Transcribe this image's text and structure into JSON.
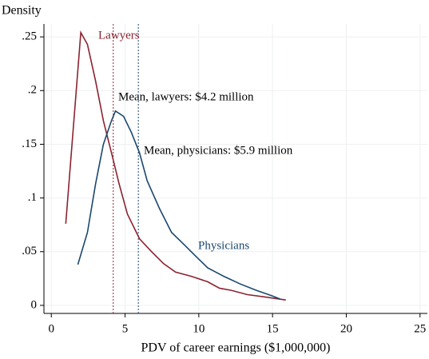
{
  "chart_data": {
    "type": "line",
    "y_label": "Density",
    "x_label": "PDV of career earnings ($1,000,000)",
    "xlim": [
      -0.5,
      25.5
    ],
    "ylim": [
      -0.0075,
      0.262
    ],
    "xticks": [
      0,
      5,
      10,
      15,
      20,
      25
    ],
    "yticks": [
      0,
      {
        "value": 0.05,
        "label": ".05"
      },
      {
        "value": 0.1,
        "label": ".1"
      },
      {
        "value": 0.15,
        "label": ".15"
      },
      {
        "value": 0.2,
        "label": ".2"
      },
      {
        "value": 0.25,
        "label": ".25"
      }
    ],
    "grid": true,
    "series": [
      {
        "name": "Lawyers",
        "color": "#8b2331",
        "x": [
          0.98,
          2.0,
          2.45,
          3.0,
          3.53,
          4.08,
          4.6,
          5.16,
          5.98,
          6.8,
          7.6,
          8.42,
          9.5,
          10.6,
          11.4,
          12.2,
          13.3,
          14.4,
          15.9
        ],
        "values": [
          0.076,
          0.254,
          0.243,
          0.209,
          0.172,
          0.142,
          0.113,
          0.085,
          0.062,
          0.05,
          0.039,
          0.031,
          0.027,
          0.022,
          0.016,
          0.014,
          0.01,
          0.008,
          0.005
        ]
      },
      {
        "name": "Physicians",
        "color": "#1a476f",
        "x": [
          1.8,
          2.45,
          3.0,
          3.53,
          4.08,
          4.35,
          4.9,
          5.43,
          5.98,
          6.5,
          7.34,
          8.15,
          8.97,
          9.78,
          10.6,
          11.7,
          12.8,
          13.9,
          14.95,
          15.5
        ],
        "values": [
          0.038,
          0.068,
          0.113,
          0.15,
          0.172,
          0.181,
          0.176,
          0.161,
          0.142,
          0.116,
          0.09,
          0.068,
          0.057,
          0.046,
          0.035,
          0.027,
          0.02,
          0.014,
          0.009,
          0.006
        ]
      }
    ],
    "reference_lines": [
      {
        "value": 4.2,
        "color": "#8b2331",
        "label": "Mean, lawyers: $4.2 million"
      },
      {
        "value": 5.9,
        "color": "#1a476f",
        "label": "Mean, physicians: $5.9 million"
      }
    ]
  }
}
